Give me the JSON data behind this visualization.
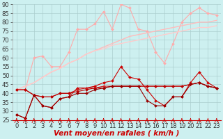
{
  "x": [
    0,
    1,
    2,
    3,
    4,
    5,
    6,
    7,
    8,
    9,
    10,
    11,
    12,
    13,
    14,
    15,
    16,
    17,
    18,
    19,
    20,
    21,
    22,
    23
  ],
  "series": [
    {
      "name": "rafales_max",
      "color": "#ffaaaa",
      "marker": "D",
      "markersize": 2,
      "linewidth": 0.8,
      "values": [
        42,
        42,
        60,
        61,
        55,
        55,
        63,
        76,
        76,
        79,
        86,
        76,
        90,
        88,
        76,
        75,
        63,
        57,
        68,
        80,
        85,
        88,
        85,
        84
      ]
    },
    {
      "name": "rafales_trend1",
      "color": "#ffbbbb",
      "marker": null,
      "markersize": 0,
      "linewidth": 1.0,
      "values": [
        42,
        44,
        46,
        49,
        52,
        54,
        57,
        59,
        62,
        64,
        66,
        68,
        70,
        72,
        73,
        74,
        75,
        76,
        77,
        78,
        79,
        80,
        80,
        81
      ]
    },
    {
      "name": "rafales_trend2",
      "color": "#ffcccc",
      "marker": null,
      "markersize": 0,
      "linewidth": 1.0,
      "values": [
        42,
        44,
        46,
        49,
        52,
        54,
        57,
        59,
        62,
        64,
        65,
        67,
        68,
        69,
        70,
        71,
        72,
        73,
        74,
        75,
        76,
        77,
        77,
        78
      ]
    },
    {
      "name": "vent_peak",
      "color": "#cc0000",
      "marker": "D",
      "markersize": 2,
      "linewidth": 0.8,
      "values": [
        28,
        26,
        39,
        33,
        32,
        37,
        38,
        43,
        43,
        44,
        46,
        47,
        55,
        49,
        48,
        42,
        36,
        33,
        38,
        38,
        46,
        52,
        46,
        43
      ]
    },
    {
      "name": "vent_flat1",
      "color": "#cc2222",
      "marker": "D",
      "markersize": 2,
      "linewidth": 0.8,
      "values": [
        42,
        42,
        39,
        38,
        38,
        40,
        40,
        42,
        43,
        43,
        44,
        44,
        44,
        44,
        44,
        44,
        44,
        44,
        44,
        44,
        45,
        46,
        44,
        43
      ]
    },
    {
      "name": "vent_flat2",
      "color": "#bb0000",
      "marker": "D",
      "markersize": 2,
      "linewidth": 0.8,
      "values": [
        42,
        42,
        39,
        38,
        38,
        40,
        40,
        41,
        42,
        43,
        43,
        44,
        44,
        44,
        44,
        44,
        44,
        44,
        44,
        44,
        45,
        46,
        44,
        43
      ]
    },
    {
      "name": "vent_min",
      "color": "#990000",
      "marker": "D",
      "markersize": 2,
      "linewidth": 0.8,
      "values": [
        28,
        26,
        39,
        33,
        32,
        37,
        38,
        40,
        40,
        42,
        43,
        44,
        44,
        44,
        44,
        36,
        33,
        33,
        38,
        38,
        45,
        46,
        44,
        43
      ]
    }
  ],
  "xlabel": "Vent moyen/en rafales ( km/h )",
  "ylim": [
    25,
    90
  ],
  "xlim": [
    -0.5,
    23.5
  ],
  "yticks": [
    25,
    30,
    35,
    40,
    45,
    50,
    55,
    60,
    65,
    70,
    75,
    80,
    85,
    90
  ],
  "xticks": [
    0,
    1,
    2,
    3,
    4,
    5,
    6,
    7,
    8,
    9,
    10,
    11,
    12,
    13,
    14,
    15,
    16,
    17,
    18,
    19,
    20,
    21,
    22,
    23
  ],
  "bg_color": "#cdf0f0",
  "grid_color": "#aacccc",
  "xlabel_color": "#cc0000",
  "xlabel_fontsize": 7.5,
  "tick_fontsize": 6,
  "arrow_color": "#cc0000"
}
